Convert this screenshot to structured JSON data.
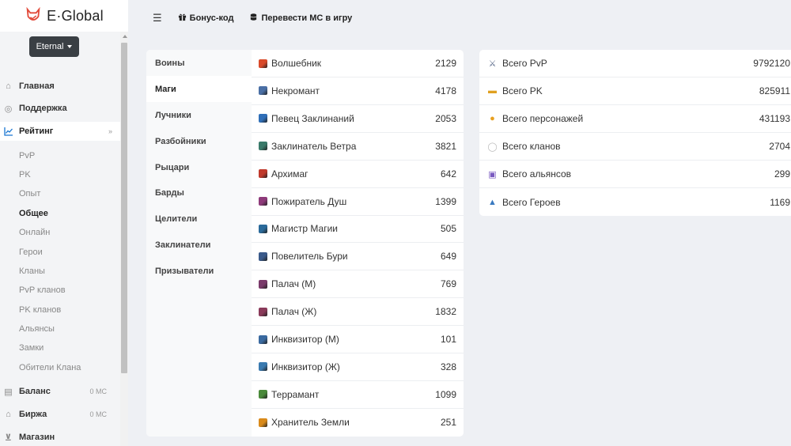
{
  "brand": {
    "name": "E·Global",
    "logo_icon": "fox-logo-icon",
    "logo_color": "#e24b3b"
  },
  "server": {
    "selected": "Eternal"
  },
  "header": {
    "bonus_label": "Бонус-код",
    "transfer_label": "Перевести МС в игру"
  },
  "menu": {
    "home": "Главная",
    "support": "Поддержка",
    "rating": "Рейтинг",
    "rating_sub": [
      "PvP",
      "PK",
      "Опыт",
      "Общее",
      "Онлайн",
      "Герои",
      "Кланы",
      "PvP кланов",
      "PK кланов",
      "Альянсы",
      "Замки",
      "Обители Клана"
    ],
    "rating_active": "Общее",
    "balance": "Баланс",
    "balance_value": "0 МС",
    "exchange": "Биржа",
    "exchange_value": "0 МС",
    "shop": "Магазин"
  },
  "class_tabs": [
    "Воины",
    "Маги",
    "Лучники",
    "Разбойники",
    "Рыцари",
    "Барды",
    "Целители",
    "Заклинатели",
    "Призыватели"
  ],
  "active_tab": "Маги",
  "classes": [
    {
      "name": "Волшебник",
      "value": "2129",
      "color": "#d94a2a"
    },
    {
      "name": "Некромант",
      "value": "4178",
      "color": "#4a6fa5"
    },
    {
      "name": "Певец Заклинаний",
      "value": "2053",
      "color": "#2f6fb8"
    },
    {
      "name": "Заклинатель Ветра",
      "value": "3821",
      "color": "#3a7a6a"
    },
    {
      "name": "Архимаг",
      "value": "642",
      "color": "#c0392b"
    },
    {
      "name": "Пожиратель Душ",
      "value": "1399",
      "color": "#8e3a7a"
    },
    {
      "name": "Магистр Магии",
      "value": "505",
      "color": "#2a6a9a"
    },
    {
      "name": "Повелитель Бури",
      "value": "649",
      "color": "#3a5a8a"
    },
    {
      "name": "Палач (М)",
      "value": "769",
      "color": "#7a3a6a"
    },
    {
      "name": "Палач (Ж)",
      "value": "1832",
      "color": "#8a3a5a"
    },
    {
      "name": "Инквизитор (М)",
      "value": "101",
      "color": "#3a6aa0"
    },
    {
      "name": "Инквизитор (Ж)",
      "value": "328",
      "color": "#3a7ab0"
    },
    {
      "name": "Террамант",
      "value": "1099",
      "color": "#4a8a3a"
    },
    {
      "name": "Хранитель Земли",
      "value": "251",
      "color": "#d98a1a"
    }
  ],
  "totals": [
    {
      "name": "Всего PvP",
      "value": "9792120",
      "icon": "crossed-swords-icon",
      "glyph": "⚔",
      "color": "#5a6a8a"
    },
    {
      "name": "Всего PK",
      "value": "825911",
      "icon": "gun-icon",
      "glyph": "▬",
      "color": "#e0a020"
    },
    {
      "name": "Всего персонажей",
      "value": "431193",
      "icon": "person-face-icon",
      "glyph": "●",
      "color": "#e8a020"
    },
    {
      "name": "Всего кланов",
      "value": "2704",
      "icon": "speech-bubble-icon",
      "glyph": "◯",
      "color": "#bbbbbb"
    },
    {
      "name": "Всего альянсов",
      "value": "299",
      "icon": "alliance-icon",
      "glyph": "▣",
      "color": "#7a5ac0"
    },
    {
      "name": "Всего Героев",
      "value": "1169",
      "icon": "hero-icon",
      "glyph": "▲",
      "color": "#3a7ac0"
    }
  ]
}
